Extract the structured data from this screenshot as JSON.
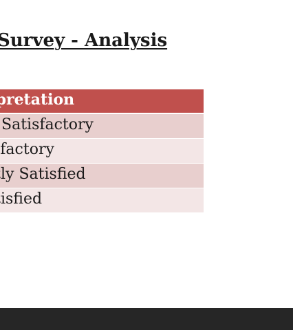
{
  "document": {
    "title": "Survey - Analysis"
  },
  "table": {
    "header": "rpretation",
    "rows": [
      {
        "label": " Satisfactory"
      },
      {
        "label": "sfactory"
      },
      {
        "label": "ntly Satisfied"
      },
      {
        "label": "atisfied"
      }
    ],
    "colors": {
      "header_bg": "#c0504d",
      "row_odd_bg": "#e8cfce",
      "row_even_bg": "#f3e6e6"
    }
  },
  "footer": {
    "bar_color": "#262626"
  }
}
